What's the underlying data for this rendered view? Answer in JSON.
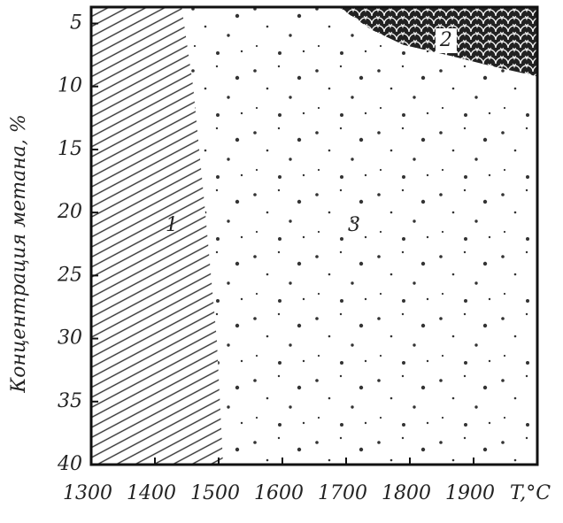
{
  "chart_data": {
    "type": "region",
    "xlabel": "T,°C",
    "ylabel": "Концентрация метана, %",
    "xlim": [
      1300,
      2000
    ],
    "xticks": [
      1300,
      1400,
      1500,
      1600,
      1700,
      1800,
      1900
    ],
    "ylim": [
      40,
      3.7
    ],
    "yticks": [
      5,
      10,
      15,
      20,
      25,
      30,
      35,
      40
    ],
    "background_region": {
      "label": "3",
      "pattern": "dots"
    },
    "regions": [
      {
        "label": "1",
        "pattern": "hatch",
        "x": [
          1300,
          1442,
          1460,
          1479,
          1497,
          1507,
          1300
        ],
        "y": [
          3.7,
          3.7,
          10,
          20,
          30,
          40,
          40
        ]
      },
      {
        "label": "2",
        "pattern": "scales",
        "x": [
          1688,
          1740,
          1790,
          1850,
          1930,
          2000,
          2000
        ],
        "y": [
          3.7,
          5.5,
          6.7,
          7.4,
          8.4,
          9.2,
          3.7
        ]
      }
    ]
  }
}
